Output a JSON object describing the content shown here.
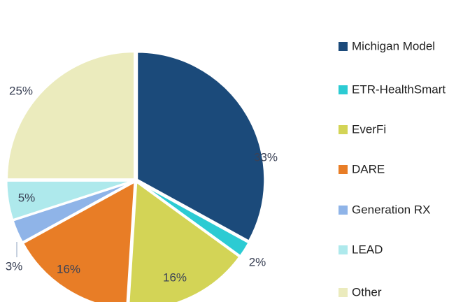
{
  "chart_data": {
    "type": "pie",
    "categories": [
      "Michigan Model",
      "ETR-HealthSmart",
      "EverFi",
      "DARE",
      "Generation RX",
      "LEAD",
      "Other"
    ],
    "values": [
      33,
      2,
      16,
      16,
      3,
      5,
      25
    ],
    "value_labels": [
      "33%",
      "2%",
      "16%",
      "16%",
      "3%",
      "5%",
      "25%"
    ],
    "colors": [
      "#1b4a7a",
      "#2ccbd3",
      "#d3d456",
      "#e87d26",
      "#8fb4e8",
      "#aee9ec",
      "#ebebbd"
    ],
    "legend": "right"
  }
}
